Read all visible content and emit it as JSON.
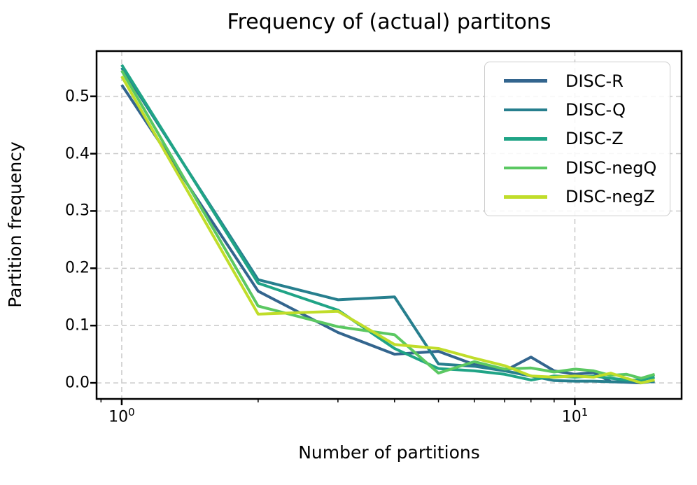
{
  "title": "Frequency of (actual) partitons",
  "chart_data": {
    "type": "line",
    "title": "Frequency of (actual) partitons",
    "xlabel": "Number of partitions",
    "ylabel": "Partition frequency",
    "xscale": "log",
    "grid": true,
    "legend_position": "upper right",
    "xlim": [
      0.88,
      17.2
    ],
    "ylim": [
      -0.028,
      0.579
    ],
    "x": [
      1,
      2,
      3,
      4,
      5,
      6,
      7,
      8,
      9,
      10,
      11,
      12,
      13,
      14,
      15
    ],
    "series": [
      {
        "name": "DISC-R",
        "color": "#33658e",
        "values": [
          0.52,
          0.16,
          0.088,
          0.05,
          0.055,
          0.032,
          0.021,
          0.045,
          0.021,
          0.015,
          0.018,
          0.002,
          0.001,
          0.0,
          0.003
        ]
      },
      {
        "name": "DISC-Q",
        "color": "#277f8e",
        "values": [
          0.55,
          0.18,
          0.145,
          0.15,
          0.033,
          0.029,
          0.021,
          0.012,
          0.004,
          0.003,
          0.003,
          0.002,
          0.002,
          0.002,
          0.002
        ]
      },
      {
        "name": "DISC-Z",
        "color": "#20a486",
        "values": [
          0.555,
          0.174,
          0.127,
          0.06,
          0.025,
          0.021,
          0.015,
          0.005,
          0.012,
          0.01,
          0.012,
          0.008,
          0.005,
          0.005,
          0.01
        ]
      },
      {
        "name": "DISC-negQ",
        "color": "#5bc862",
        "values": [
          0.545,
          0.134,
          0.098,
          0.084,
          0.017,
          0.037,
          0.024,
          0.026,
          0.019,
          0.024,
          0.021,
          0.013,
          0.015,
          0.008,
          0.015
        ]
      },
      {
        "name": "DISC-negZ",
        "color": "#c0dd2a",
        "values": [
          0.535,
          0.12,
          0.125,
          0.067,
          0.06,
          0.043,
          0.03,
          0.012,
          0.01,
          0.012,
          0.01,
          0.017,
          0.008,
          0.0,
          0.005
        ]
      }
    ],
    "yticks": [
      0.0,
      0.1,
      0.2,
      0.3,
      0.4,
      0.5
    ],
    "ytick_labels": [
      "0.0",
      "0.1",
      "0.2",
      "0.3",
      "0.4",
      "0.5"
    ],
    "xticks_major": [
      {
        "value": 1,
        "base": "10",
        "exp": "0"
      },
      {
        "value": 10,
        "base": "10",
        "exp": "1"
      }
    ],
    "xticks_minor": [
      0.9,
      2,
      3,
      4,
      5,
      6,
      7,
      8,
      9
    ]
  },
  "colors": {
    "grid": "#c9c9c9",
    "spine": "#000000",
    "background": "#ffffff",
    "legend_border": "#cccccc"
  }
}
